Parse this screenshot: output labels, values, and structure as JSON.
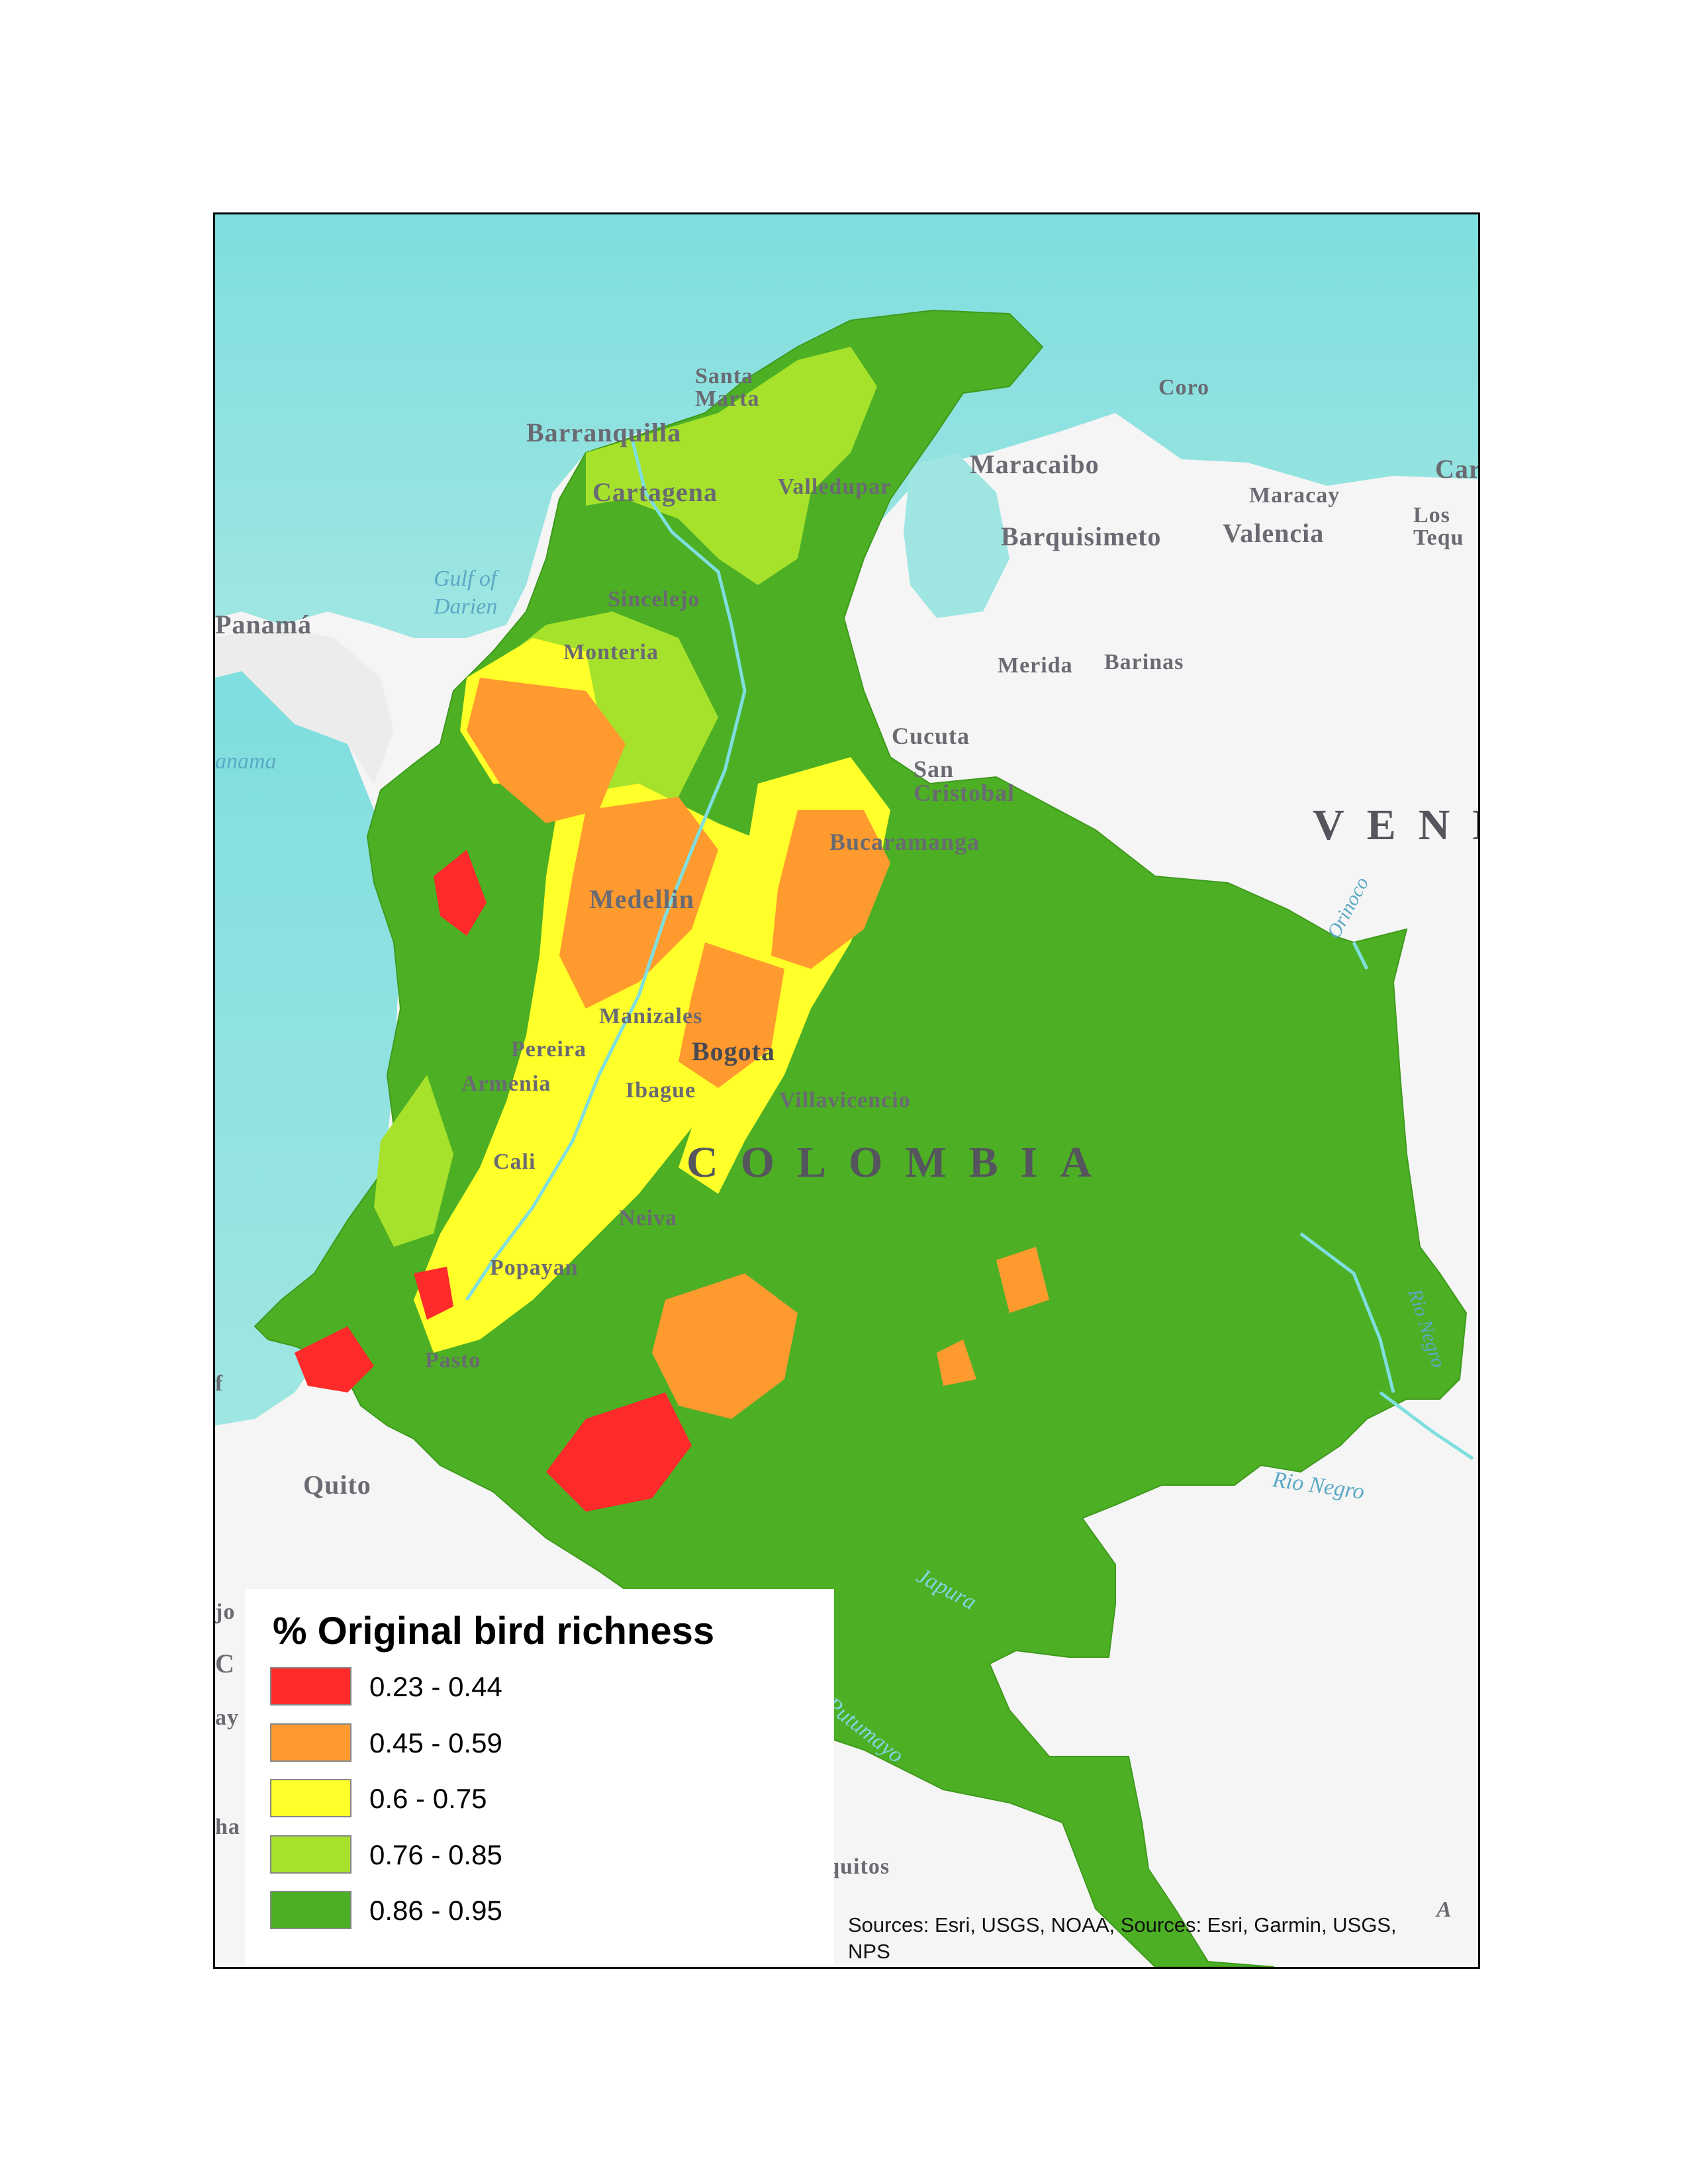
{
  "legend": {
    "title": "% Original bird richness",
    "items": [
      {
        "label": "0.23 - 0.44",
        "color": "#ff2a2a"
      },
      {
        "label": "0.45 - 0.59",
        "color": "#ff9a2e"
      },
      {
        "label": "0.6 - 0.75",
        "color": "#ffff2a"
      },
      {
        "label": "0.76 - 0.85",
        "color": "#a6e22b"
      },
      {
        "label": "0.86 - 0.95",
        "color": "#4caf24"
      }
    ]
  },
  "attribution": "Sources: Esri, USGS, NOAA, Sources: Esri, Garmin, USGS, NPS",
  "places": {
    "santa_marta": "Santa\nMarta",
    "barranquilla": "Barranquilla",
    "cartagena": "Cartagena",
    "valledupar": "Valledupar",
    "sincelejo": "Sincelejo",
    "monteria": "Monteria",
    "medellin": "Medellin",
    "bucaramanga": "Bucaramanga",
    "cucuta": "Cucuta",
    "san_cristobal": "San\nCristobal",
    "manizales": "Manizales",
    "pereira": "Pereira",
    "armenia": "Armenia",
    "ibague": "Ibague",
    "bogota": "Bogota",
    "villavicencio": "Villavicencio",
    "cali": "Cali",
    "neiva": "Neiva",
    "popayan": "Popayan",
    "pasto": "Pasto",
    "quito": "Quito",
    "iquitos": "Iquitos",
    "coro": "Coro",
    "maracaibo": "Maracaibo",
    "maracay": "Maracay",
    "valencia": "Valencia",
    "barquisimeto": "Barquisimeto",
    "merida": "Merida",
    "barinas": "Barinas",
    "los_teques": "Los\nTequ",
    "car": "Car",
    "panama": "Panamá"
  },
  "water": {
    "gulf_of_darien": "Gulf of\nDarien",
    "panama_gulf": "anama",
    "orinoco": "Orinoco",
    "rio_negro_1": "Rio Negro",
    "rio_negro_2": "Rio Negro",
    "japura": "Japura",
    "putumayo": "Putumayo"
  },
  "countries": {
    "colombia": "COLOMBIA",
    "venezuela": "VENE"
  },
  "fragments": {
    "f1": "f",
    "f2": "jo",
    "f3": "C",
    "f4": "ay",
    "f5": "ha",
    "f6": "A"
  }
}
